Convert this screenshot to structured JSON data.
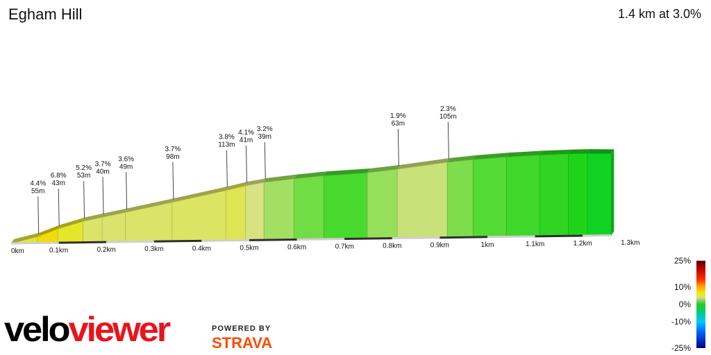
{
  "header": {
    "title": "Egham Hill",
    "summary": "1.4 km at 3.0%"
  },
  "chart_data": {
    "type": "area",
    "title": "Egham Hill",
    "xlabel": "",
    "ylabel": "",
    "x_unit": "km",
    "xlim": [
      0,
      1.4
    ],
    "grid": false,
    "x_ticks": [
      "0km",
      "0.1km",
      "0.2km",
      "0.3km",
      "0.4km",
      "0.5km",
      "0.6km",
      "0.7km",
      "0.8km",
      "0.9km",
      "1km",
      "1.1km",
      "1.2km",
      "1.3km"
    ],
    "x_tick_values": [
      0,
      0.1,
      0.2,
      0.3,
      0.4,
      0.5,
      0.6,
      0.7,
      0.8,
      0.9,
      1.0,
      1.1,
      1.2,
      1.3
    ],
    "segments": [
      {
        "start": 0.0,
        "end": 0.055,
        "gradient": 4.4
      },
      {
        "start": 0.055,
        "end": 0.098,
        "gradient": 6.8
      },
      {
        "start": 0.098,
        "end": 0.151,
        "gradient": 5.2
      },
      {
        "start": 0.151,
        "end": 0.191,
        "gradient": 3.7
      },
      {
        "start": 0.191,
        "end": 0.24,
        "gradient": 3.6
      },
      {
        "start": 0.24,
        "end": 0.338,
        "gradient": 3.7
      },
      {
        "start": 0.338,
        "end": 0.451,
        "gradient": 3.8
      },
      {
        "start": 0.451,
        "end": 0.492,
        "gradient": 4.1
      },
      {
        "start": 0.492,
        "end": 0.531,
        "gradient": 3.2
      },
      {
        "start": 0.531,
        "end": 0.594,
        "gradient": 2.0
      },
      {
        "start": 0.594,
        "end": 0.657,
        "gradient": 1.6
      },
      {
        "start": 0.657,
        "end": 0.748,
        "gradient": 1.0
      },
      {
        "start": 0.748,
        "end": 0.811,
        "gradient": 1.9
      },
      {
        "start": 0.811,
        "end": 0.916,
        "gradient": 2.3
      },
      {
        "start": 0.916,
        "end": 0.97,
        "gradient": 1.7
      },
      {
        "start": 0.97,
        "end": 1.04,
        "gradient": 1.2
      },
      {
        "start": 1.04,
        "end": 1.11,
        "gradient": 0.8
      },
      {
        "start": 1.11,
        "end": 1.17,
        "gradient": 0.5
      },
      {
        "start": 1.17,
        "end": 1.21,
        "gradient": 0.2
      },
      {
        "start": 1.21,
        "end": 1.26,
        "gradient": -0.4
      }
    ],
    "annotations": [
      {
        "x": 0.055,
        "gradient": "4.4%",
        "length": "55m"
      },
      {
        "x": 0.098,
        "gradient": "6.8%",
        "length": "43m"
      },
      {
        "x": 0.151,
        "gradient": "5.2%",
        "length": "53m"
      },
      {
        "x": 0.191,
        "gradient": "3.7%",
        "length": "40m"
      },
      {
        "x": 0.24,
        "gradient": "3.6%",
        "length": "49m"
      },
      {
        "x": 0.338,
        "gradient": "3.7%",
        "length": "98m"
      },
      {
        "x": 0.451,
        "gradient": "3.8%",
        "length": "113m"
      },
      {
        "x": 0.492,
        "gradient": "4.1%",
        "length": "41m"
      },
      {
        "x": 0.531,
        "gradient": "3.2%",
        "length": "39m"
      },
      {
        "x": 0.811,
        "gradient": "1.9%",
        "length": "63m"
      },
      {
        "x": 0.916,
        "gradient": "2.3%",
        "length": "105m"
      }
    ],
    "legend": {
      "labels": [
        "25%",
        "10%",
        "0%",
        "-10%",
        "-25%"
      ],
      "values": [
        25,
        10,
        0,
        -10,
        -25
      ]
    }
  },
  "branding": {
    "velo": "velo",
    "viewer": "viewer",
    "powered_by": "POWERED BY",
    "strava": "STRAVA"
  },
  "colors": {
    "brand_red": "#e8141c",
    "strava_orange": "#fc4c02"
  }
}
